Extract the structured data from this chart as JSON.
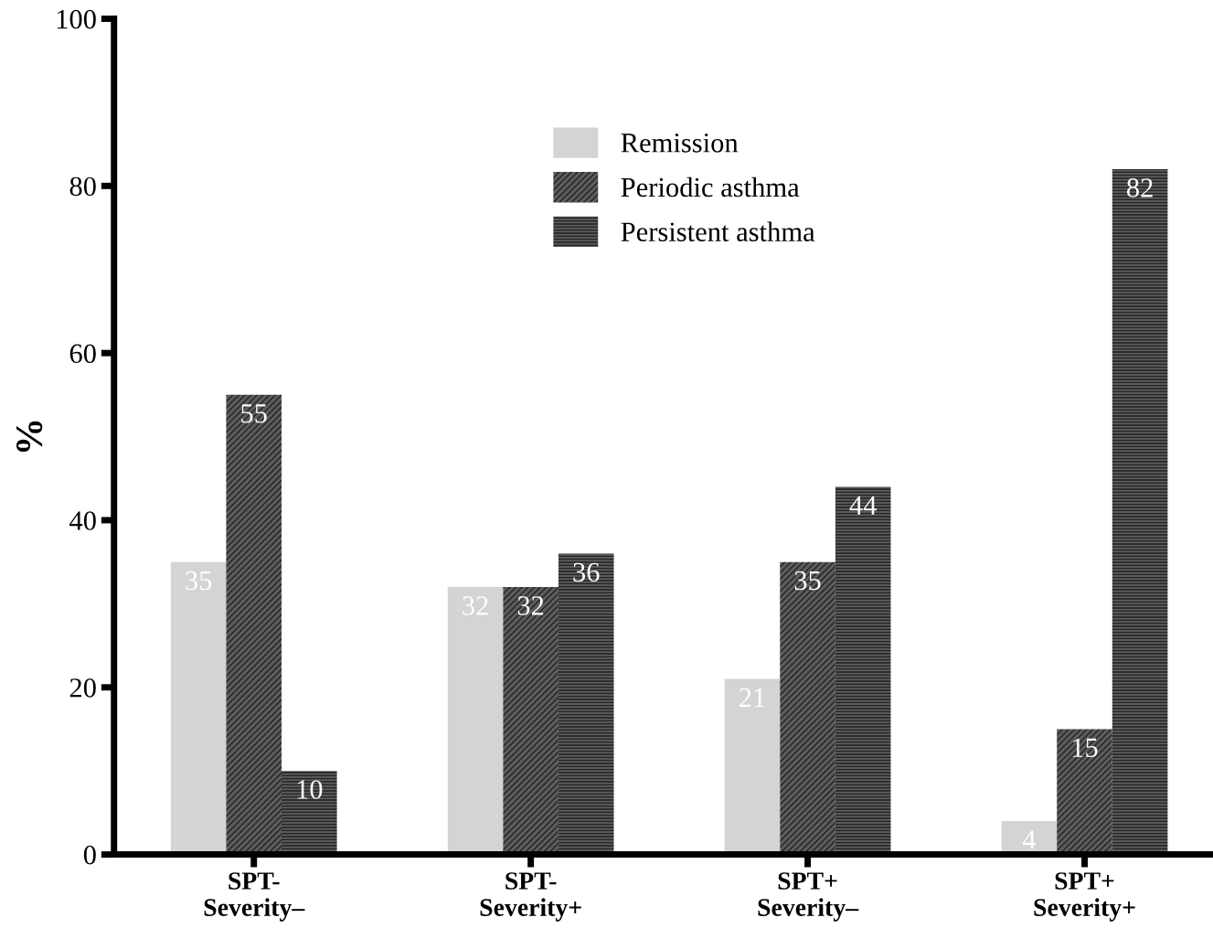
{
  "chart_data": {
    "type": "bar",
    "ylabel": "%",
    "categories": [
      "SPT-\nSeverity–",
      "SPT-\nSeverity+",
      "SPT+\nSeverity–",
      "SPT+\nSeverity+"
    ],
    "series": [
      {
        "name": "Remission",
        "color": "#d4d4d4",
        "values": [
          35,
          32,
          21,
          4
        ]
      },
      {
        "name": "Periodic asthma",
        "color": "#5c5c5c",
        "values": [
          55,
          32,
          35,
          15
        ]
      },
      {
        "name": "Persistent asthma",
        "color": "#5a5a5a",
        "values": [
          10,
          36,
          44,
          82
        ]
      }
    ],
    "ylim": [
      0,
      100
    ],
    "yticks": [
      0,
      20,
      40,
      60,
      80,
      100
    ],
    "grid": false,
    "legend": "top",
    "data_labels": true
  }
}
